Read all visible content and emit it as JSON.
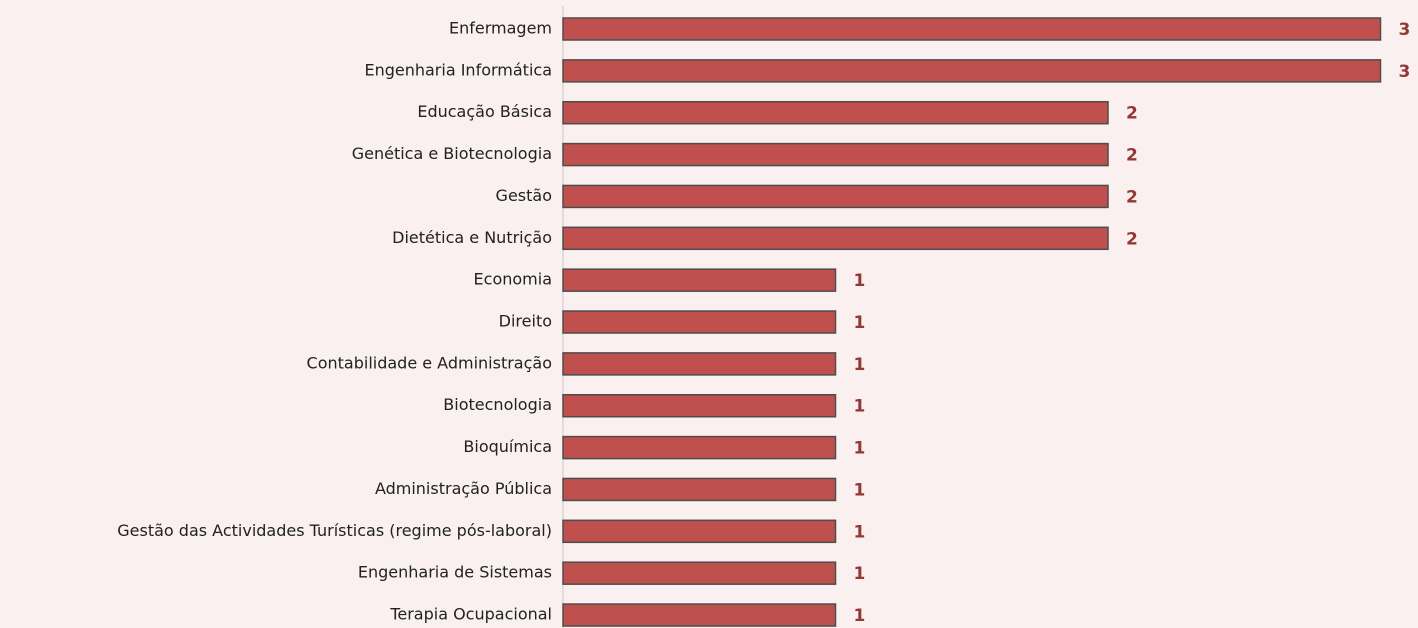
{
  "chart_data": {
    "type": "bar",
    "orientation": "horizontal",
    "categories": [
      "Enfermagem",
      "Engenharia Informática",
      "Educação Básica",
      "Genética e Biotecnologia",
      "Gestão",
      "Dietética e Nutrição",
      "Economia",
      "Direito",
      "Contabilidade e Administração",
      "Biotecnologia",
      "Bioquímica",
      "Administração Pública",
      "Gestão das Actividades Turísticas (regime pós-laboral)",
      "Engenharia de Sistemas",
      "Terapia Ocupacional"
    ],
    "values": [
      3,
      3,
      2,
      2,
      2,
      2,
      1,
      1,
      1,
      1,
      1,
      1,
      1,
      1,
      1
    ],
    "color": "#c0504d"
  }
}
